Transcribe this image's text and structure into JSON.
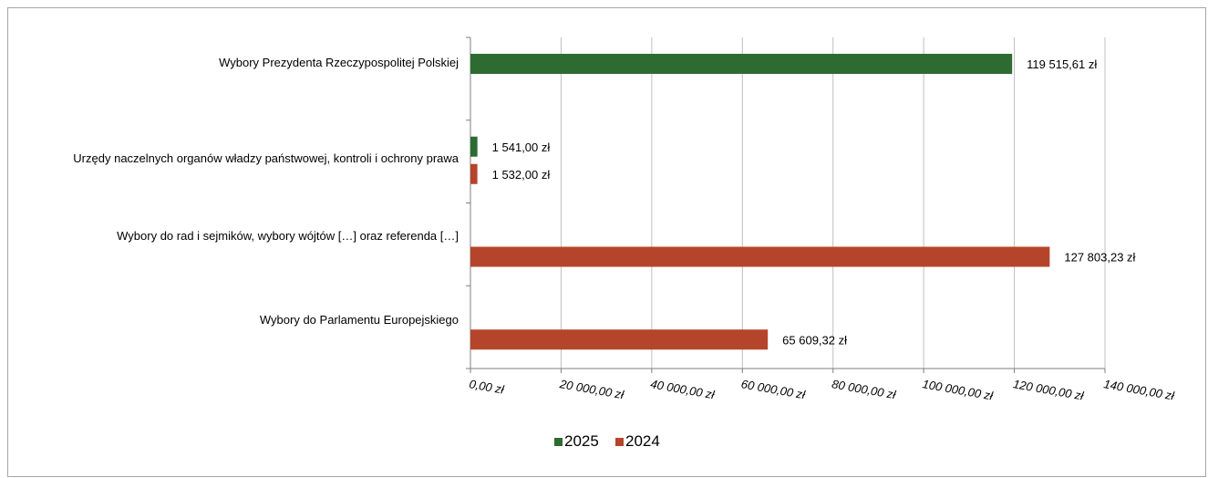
{
  "chart_data": {
    "type": "bar",
    "orientation": "horizontal",
    "title": "",
    "xlabel": "",
    "ylabel": "",
    "categories": [
      "Wybory Prezydenta Rzeczypospolitej Polskiej",
      "Urzędy naczelnych organów władzy państwowej, kontroli i ochrony prawa",
      "Wybory do rad i sejmików, wybory wójtów […] oraz referenda […]",
      "Wybory do Parlamentu Europejskiego"
    ],
    "series": [
      {
        "name": "2025",
        "color": "#2e6b30",
        "values": [
          119515.61,
          1541.0,
          null,
          null
        ],
        "labels": [
          "119 515,61 zł",
          "1 541,00 zł",
          "",
          ""
        ]
      },
      {
        "name": "2024",
        "color": "#b5452a",
        "values": [
          null,
          1532.0,
          127803.23,
          65609.32
        ],
        "labels": [
          "",
          "1 532,00 zł",
          "127 803,23 zł",
          "65 609,32 zł"
        ]
      }
    ],
    "xlim": [
      0,
      140000
    ],
    "ticks": [
      0,
      20000,
      40000,
      60000,
      80000,
      100000,
      120000,
      140000
    ],
    "tick_labels": [
      "0,00 zł",
      "20 000,00 zł",
      "40 000,00 zł",
      "60 000,00 zł",
      "80 000,00 zł",
      "100 000,00 zł",
      "120 000,00 zł",
      "140 000,00 zł"
    ],
    "grid": true,
    "legend_position": "bottom"
  }
}
